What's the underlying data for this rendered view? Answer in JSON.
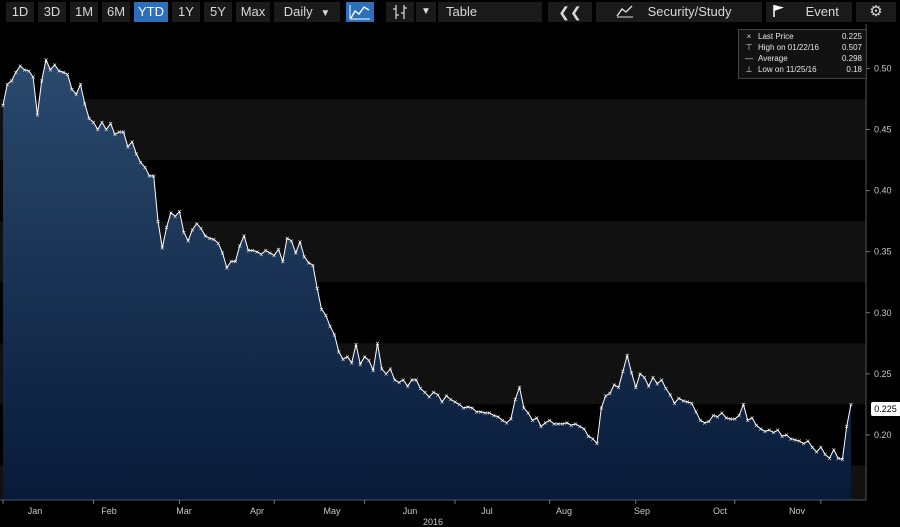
{
  "toolbar": {
    "ranges": [
      {
        "label": "1D",
        "active": false
      },
      {
        "label": "3D",
        "active": false
      },
      {
        "label": "1M",
        "active": false
      },
      {
        "label": "6M",
        "active": false
      },
      {
        "label": "YTD",
        "active": true
      },
      {
        "label": "1Y",
        "active": false
      },
      {
        "label": "5Y",
        "active": false
      },
      {
        "label": "Max",
        "active": false
      }
    ],
    "frequency": "Daily",
    "table_label": "Table",
    "security_study_label": "Security/Study",
    "event_label": "Event",
    "icons": [
      "line-chart-icon",
      "candlestick-icon",
      "dropdown-arrow-icon",
      "double-chevron-left-icon",
      "study-icon",
      "flag-icon",
      "gear-icon"
    ]
  },
  "legend": {
    "last_price_label": "Last Price",
    "last_price_value": "0.225",
    "high_label": "High on 01/22/16",
    "high_value": "0.507",
    "average_label": "Average",
    "average_value": "0.298",
    "low_label": "Low on 11/25/16",
    "low_value": "0.18"
  },
  "last_price_tag": "0.225",
  "colors": {
    "accent": "#2d6fb8",
    "line": "#ffffff",
    "fill_top": "#2a4a6e",
    "fill_bottom": "#0a1c3a"
  },
  "chart_data": {
    "type": "area",
    "title": "",
    "xlabel": "2016",
    "ylabel": "",
    "x_ticks": [
      "Jan",
      "Feb",
      "Mar",
      "Apr",
      "May",
      "Jun",
      "Jul",
      "Aug",
      "Sep",
      "Oct",
      "Nov"
    ],
    "y_ticks": [
      "0.50",
      "0.45",
      "0.40",
      "0.35",
      "0.30",
      "0.25",
      "0.20"
    ],
    "ylim": [
      0.15,
      0.52
    ],
    "y_axis_side": "right",
    "legend_position": "top-right",
    "series": [
      {
        "values": [
          0.47,
          0.487,
          0.49,
          0.497,
          0.502,
          0.499,
          0.498,
          0.493,
          0.462,
          0.49,
          0.507,
          0.499,
          0.503,
          0.498,
          0.497,
          0.495,
          0.483,
          0.479,
          0.487,
          0.471,
          0.459,
          0.456,
          0.45,
          0.456,
          0.45,
          0.455,
          0.446,
          0.448,
          0.448,
          0.436,
          0.44,
          0.43,
          0.423,
          0.419,
          0.412,
          0.412,
          0.375,
          0.353,
          0.37,
          0.382,
          0.379,
          0.383,
          0.366,
          0.359,
          0.368,
          0.373,
          0.369,
          0.363,
          0.361,
          0.36,
          0.357,
          0.349,
          0.337,
          0.342,
          0.342,
          0.355,
          0.363,
          0.351,
          0.351,
          0.35,
          0.348,
          0.351,
          0.349,
          0.347,
          0.352,
          0.342,
          0.361,
          0.359,
          0.349,
          0.358,
          0.346,
          0.341,
          0.339,
          0.32,
          0.303,
          0.298,
          0.289,
          0.282,
          0.268,
          0.262,
          0.264,
          0.259,
          0.274,
          0.258,
          0.264,
          0.261,
          0.253,
          0.275,
          0.254,
          0.25,
          0.254,
          0.245,
          0.243,
          0.245,
          0.24,
          0.245,
          0.245,
          0.238,
          0.235,
          0.231,
          0.235,
          0.233,
          0.227,
          0.232,
          0.229,
          0.227,
          0.225,
          0.222,
          0.223,
          0.222,
          0.219,
          0.219,
          0.218,
          0.218,
          0.216,
          0.215,
          0.212,
          0.21,
          0.213,
          0.229,
          0.239,
          0.222,
          0.218,
          0.212,
          0.214,
          0.207,
          0.21,
          0.212,
          0.209,
          0.209,
          0.209,
          0.21,
          0.208,
          0.209,
          0.207,
          0.205,
          0.199,
          0.197,
          0.193,
          0.222,
          0.232,
          0.234,
          0.241,
          0.239,
          0.252,
          0.265,
          0.251,
          0.239,
          0.25,
          0.247,
          0.24,
          0.247,
          0.242,
          0.245,
          0.238,
          0.233,
          0.226,
          0.23,
          0.228,
          0.227,
          0.226,
          0.219,
          0.212,
          0.21,
          0.211,
          0.216,
          0.215,
          0.218,
          0.214,
          0.213,
          0.213,
          0.216,
          0.225,
          0.212,
          0.214,
          0.208,
          0.205,
          0.203,
          0.204,
          0.202,
          0.204,
          0.199,
          0.2,
          0.197,
          0.196,
          0.195,
          0.193,
          0.195,
          0.19,
          0.186,
          0.19,
          0.184,
          0.181,
          0.188,
          0.181,
          0.18,
          0.207,
          0.225
        ]
      }
    ]
  }
}
